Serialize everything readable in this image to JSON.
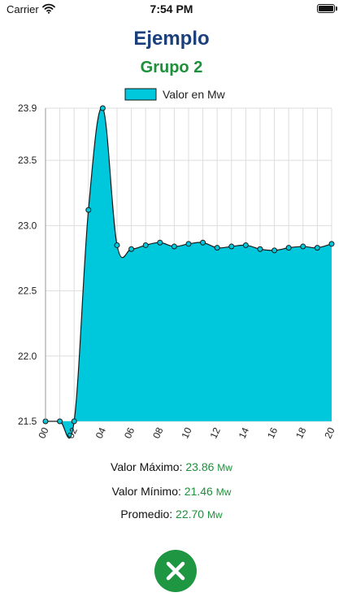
{
  "status_bar": {
    "carrier": "Carrier",
    "time": "7:54 PM",
    "wifi_icon": "wifi-icon",
    "battery_icon": "battery-icon"
  },
  "header": {
    "title": "Ejemplo",
    "subtitle": "Grupo 2"
  },
  "colors": {
    "title": "#1b3f7a",
    "accent_green": "#1e8f3a",
    "area_fill": "#00c8dc",
    "grid": "#dddddd"
  },
  "chart_data": {
    "type": "area",
    "legend": "Valor en Mw",
    "legend_position": "top-center",
    "grid": true,
    "y_tick_labels": [
      "21.5",
      "22.0",
      "22.5",
      "23.0",
      "23.5",
      "23.9"
    ],
    "y_ticks": [
      21.5,
      22.0,
      22.5,
      23.0,
      23.5,
      23.9
    ],
    "ylim": [
      21.5,
      23.9
    ],
    "xlim": [
      0,
      20
    ],
    "x_tick_labels": [
      "00",
      "02",
      "04",
      "06",
      "08",
      "10",
      "12",
      "14",
      "16",
      "18",
      "20"
    ],
    "x": [
      0,
      1,
      2,
      3,
      4,
      5,
      6,
      7,
      8,
      9,
      10,
      11,
      12,
      13,
      14,
      15,
      16,
      17,
      18,
      19,
      20
    ],
    "series": [
      {
        "name": "Valor en Mw",
        "values": [
          21.5,
          21.5,
          21.5,
          23.12,
          23.9,
          22.85,
          22.82,
          22.85,
          22.87,
          22.84,
          22.86,
          22.87,
          22.83,
          22.84,
          22.85,
          22.82,
          22.81,
          22.83,
          22.84,
          22.83,
          22.86
        ]
      }
    ]
  },
  "stats": {
    "max_label": "Valor Máximo: ",
    "max_value": "23.86",
    "min_label": "Valor Mínimo: ",
    "min_value": "21.46",
    "avg_label": "Promedio: ",
    "avg_value": "22.70",
    "unit": "Mw"
  },
  "close_button": {
    "icon": "close-icon"
  }
}
